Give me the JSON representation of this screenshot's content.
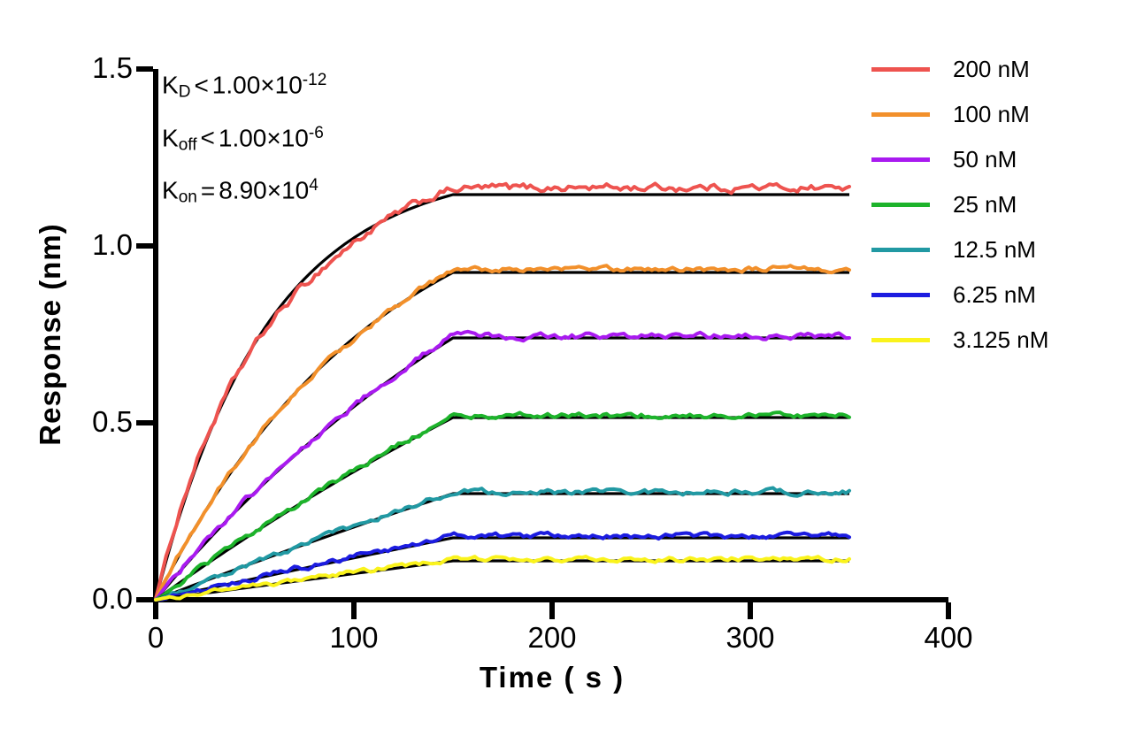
{
  "chart_data": {
    "type": "line",
    "title": "",
    "xlabel": "Time（s）",
    "ylabel": "Response (nm)",
    "xlim": [
      0,
      400
    ],
    "ylim": [
      0,
      1.5
    ],
    "x_ticks": [
      0,
      100,
      200,
      300,
      400
    ],
    "x_tick_labels": [
      "0",
      "100",
      "200",
      "300",
      "400"
    ],
    "y_ticks": [
      0,
      0.5,
      1.0,
      1.5
    ],
    "y_tick_labels": [
      "0.0",
      "0.5",
      "1.0",
      "1.5"
    ],
    "grid": false,
    "legend_position": "right-outside",
    "association_end_s": 150,
    "trace_end_s": 350,
    "kon_per_M_s": 89000,
    "fit_color": "#000000",
    "kinetics_annotations": [
      {
        "label": "K",
        "subscript": "D",
        "operator": "＜",
        "mantissa": "1.00×10",
        "exponent": "-12"
      },
      {
        "label": "K",
        "subscript": "off",
        "operator": "＜",
        "mantissa": "1.00×10",
        "exponent": "-6"
      },
      {
        "label": "K",
        "subscript": "on",
        "operator": "=",
        "mantissa": "8.90×10",
        "exponent": "4"
      }
    ],
    "series": [
      {
        "name": "200 nM",
        "conc_nM": 200,
        "color": "#EE534F",
        "fit_plateau": 1.145,
        "data_plateau": 1.165,
        "noise": 0.024,
        "bias": [
          {
            "t": 85,
            "s": 33,
            "a": -0.035
          },
          {
            "t": 15,
            "s": 10,
            "a": 0.012
          }
        ]
      },
      {
        "name": "100 nM",
        "conc_nM": 100,
        "color": "#F2902B",
        "fit_plateau": 0.925,
        "data_plateau": 0.935,
        "noise": 0.016,
        "bias": [
          {
            "t": 100,
            "s": 35,
            "a": -0.01
          }
        ]
      },
      {
        "name": "50 nM",
        "conc_nM": 50,
        "color": "#A91AF0",
        "fit_plateau": 0.74,
        "data_plateau": 0.745,
        "noise": 0.018,
        "bias": []
      },
      {
        "name": "25 nM",
        "conc_nM": 25,
        "color": "#1DB32B",
        "fit_plateau": 0.515,
        "data_plateau": 0.52,
        "noise": 0.016,
        "bias": []
      },
      {
        "name": "12.5 nM",
        "conc_nM": 12.5,
        "color": "#2199A3",
        "fit_plateau": 0.3,
        "data_plateau": 0.305,
        "noise": 0.016,
        "bias": []
      },
      {
        "name": "6.25 nM",
        "conc_nM": 6.25,
        "color": "#1C1CE0",
        "fit_plateau": 0.175,
        "data_plateau": 0.18,
        "noise": 0.016,
        "bias": []
      },
      {
        "name": "3.125 nM",
        "conc_nM": 3.125,
        "color": "#FAF31C",
        "fit_plateau": 0.11,
        "data_plateau": 0.115,
        "noise": 0.014,
        "bias": []
      }
    ]
  }
}
